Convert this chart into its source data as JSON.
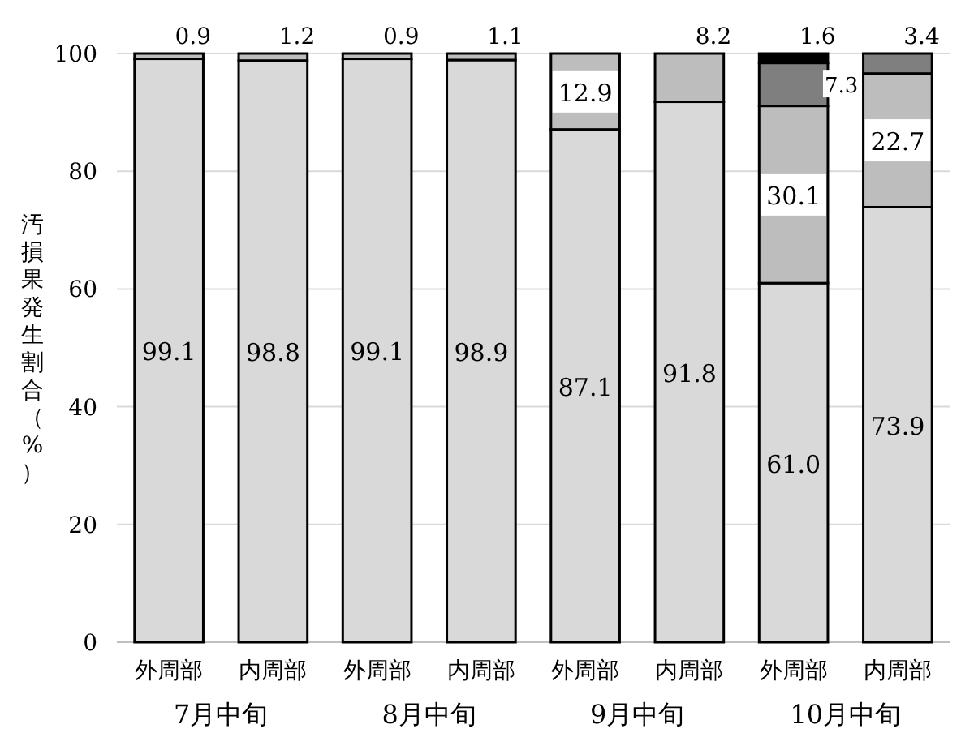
{
  "chart_data": {
    "type": "bar",
    "stacked": true,
    "ylabel": "汚損果発生割合（%）",
    "categories": [
      "外周部",
      "内周部",
      "外周部",
      "内周部",
      "外周部",
      "内周部",
      "外周部",
      "内周部"
    ],
    "annotations": [
      "7月中旬",
      "8月中旬",
      "9月中旬",
      "10月中旬"
    ],
    "ylim": [
      0,
      100
    ],
    "yticks": [
      0,
      20,
      40,
      60,
      80,
      100
    ],
    "grid": "y",
    "data_labels": true,
    "series": [
      {
        "color": "#d9d9d9",
        "values": [
          99.1,
          98.8,
          99.1,
          98.9,
          87.1,
          91.8,
          61.0,
          73.9
        ],
        "value_labels": [
          "99.1",
          "98.8",
          "99.1",
          "98.9",
          "87.1",
          "91.8",
          "61.0",
          "73.9"
        ]
      },
      {
        "color": "#bdbdbd",
        "values": [
          0.9,
          1.2,
          0.9,
          1.1,
          12.9,
          8.2,
          30.1,
          22.7
        ],
        "value_labels": [
          "0.9",
          "1.2",
          "0.9",
          "1.1",
          "12.9",
          "8.2",
          "30.1",
          "22.7"
        ]
      },
      {
        "color": "#7f7f7f",
        "values": [
          null,
          null,
          null,
          null,
          null,
          null,
          7.3,
          3.4
        ],
        "value_labels": [
          null,
          null,
          null,
          null,
          null,
          null,
          "7.3",
          "3.4"
        ]
      },
      {
        "color": "#000000",
        "values": [
          null,
          null,
          null,
          null,
          null,
          null,
          1.6,
          null
        ],
        "value_labels": [
          null,
          null,
          null,
          null,
          null,
          null,
          "1.6",
          null
        ]
      }
    ]
  }
}
